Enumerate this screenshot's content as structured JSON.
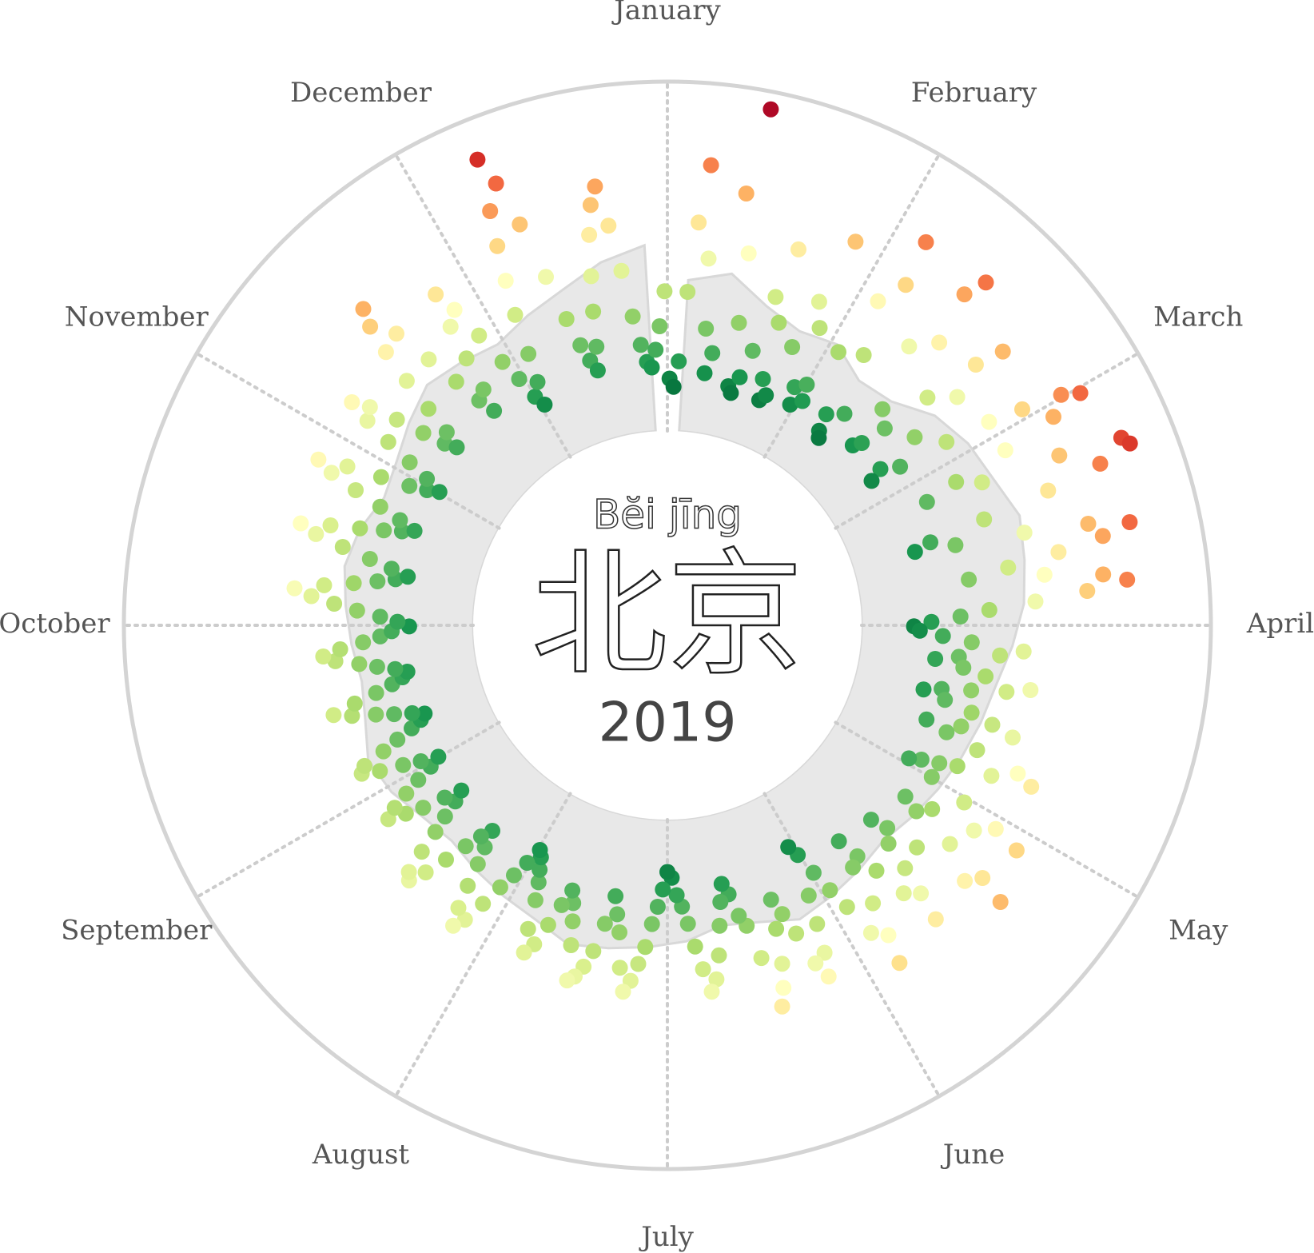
{
  "chart_data": {
    "type": "radial-scatter",
    "title": "北京",
    "subtitle": "Bĕi jīng",
    "year_label": "2019",
    "categories": [
      "January",
      "February",
      "March",
      "April",
      "May",
      "June",
      "July",
      "August",
      "September",
      "October",
      "November",
      "December"
    ],
    "values": [
      45,
      38,
      60,
      120,
      180,
      230,
      150,
      90,
      52,
      70,
      210,
      285,
      160,
      100,
      45,
      40,
      55,
      80,
      130,
      175,
      110,
      60,
      42,
      48,
      95,
      140,
      200,
      120,
      65,
      50,
      72,
      58,
      110,
      165,
      230,
      190,
      120,
      60,
      45,
      40,
      70,
      150,
      215,
      235,
      170,
      95,
      55,
      62,
      85,
      130,
      180,
      205,
      150,
      100,
      60,
      48,
      75,
      120,
      160,
      190,
      225,
      240,
      210,
      160,
      110,
      80,
      130,
      200,
      255,
      260,
      230,
      180,
      120,
      70,
      55,
      90,
      150,
      205,
      240,
      215,
      175,
      130,
      95,
      160,
      210,
      230,
      195,
      150,
      110,
      85,
      60,
      45,
      50,
      70,
      95,
      140,
      120,
      85,
      65,
      90,
      110,
      150,
      130,
      100,
      75,
      60,
      80,
      105,
      125,
      145,
      100,
      70,
      90,
      120,
      160,
      175,
      140,
      110,
      95,
      80,
      70,
      95,
      130,
      165,
      190,
      150,
      110,
      85,
      100,
      140,
      180,
      205,
      170,
      120,
      90,
      75,
      100,
      125,
      150,
      175,
      140,
      110,
      90,
      70,
      95,
      130,
      160,
      185,
      150,
      120,
      100,
      80,
      60,
      50,
      95,
      120,
      145,
      165,
      150,
      120,
      100,
      85,
      110,
      140,
      160,
      175,
      130,
      100,
      90,
      70,
      60,
      75,
      95,
      120,
      140,
      150,
      130,
      110,
      90,
      75,
      65,
      50,
      45,
      60,
      75,
      90,
      110,
      125,
      140,
      150,
      130,
      100,
      85,
      70,
      95,
      120,
      135,
      145,
      150,
      120,
      100,
      85,
      75,
      90,
      110,
      130,
      140,
      120,
      95,
      80,
      70,
      60,
      55,
      70,
      85,
      100,
      120,
      140,
      150,
      135,
      115,
      95,
      80,
      65,
      75,
      90,
      110,
      130,
      145,
      140,
      120,
      100,
      85,
      70,
      60,
      75,
      95,
      110,
      125,
      115,
      100,
      85,
      70,
      60,
      75,
      90,
      110,
      125,
      120,
      100,
      85,
      70,
      60,
      55,
      65,
      80,
      95,
      115,
      130,
      110,
      90,
      75,
      65,
      60,
      70,
      85,
      100,
      120,
      130,
      115,
      95,
      80,
      70,
      55,
      65,
      80,
      100,
      120,
      140,
      155,
      130,
      105,
      85,
      70,
      60,
      75,
      95,
      120,
      145,
      160,
      135,
      110,
      90,
      75,
      65,
      80,
      100,
      125,
      150,
      165,
      140,
      110,
      85,
      70,
      60,
      75,
      95,
      120,
      145,
      165,
      150,
      125,
      100,
      80,
      70,
      85,
      110,
      140,
      170,
      195,
      210,
      175,
      140,
      110,
      85,
      70,
      90,
      120,
      150,
      180,
      160,
      130,
      100,
      80,
      60,
      50,
      70,
      95,
      130,
      160,
      190,
      220,
      265,
      240,
      200,
      150,
      110,
      85,
      70,
      60,
      80,
      110,
      140,
      175,
      200,
      215,
      180,
      140,
      100,
      75,
      60,
      55,
      70,
      90,
      120
    ],
    "area_values": [
      130,
      140,
      120,
      110,
      115,
      100,
      105,
      125,
      135,
      140,
      150,
      145,
      140,
      130,
      120,
      115,
      110,
      105,
      100,
      95,
      100,
      105,
      110,
      100,
      95,
      105,
      110,
      115,
      120,
      110,
      105,
      100,
      95,
      100,
      110,
      115,
      105,
      100,
      105,
      110,
      115,
      110,
      100,
      105,
      115,
      125,
      120,
      115,
      125,
      135,
      150,
      160
    ],
    "area_color": "#e8e8e8",
    "ylim": [
      0,
      300
    ],
    "colorscale": [
      "#006837",
      "#1a9850",
      "#66bd63",
      "#a6d96a",
      "#d9ef8b",
      "#ffffbf",
      "#fee08b",
      "#fdae61",
      "#f46d43",
      "#d73027",
      "#a50026"
    ],
    "color_domain": [
      30,
      290
    ],
    "grid": true
  }
}
